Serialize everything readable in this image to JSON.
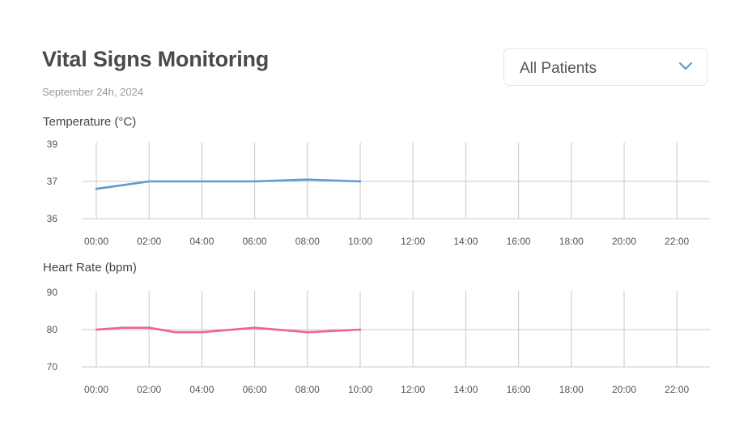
{
  "header": {
    "title": "Vital Signs Monitoring",
    "date": "September 24h, 2024"
  },
  "patient_select": {
    "selected": "All Patients",
    "icon": "chevron-down-icon"
  },
  "colors": {
    "temperature": "#5b9bd5",
    "heart_rate": "#f06292",
    "grid": "#c8c8c8"
  },
  "chart_data": [
    {
      "type": "line",
      "title": "Temperature (°C)",
      "x": [
        "00:00",
        "02:00",
        "04:00",
        "06:00",
        "08:00",
        "10:00",
        "12:00",
        "14:00",
        "16:00",
        "18:00",
        "20:00",
        "22:00"
      ],
      "y_ticks": [
        36,
        37,
        39
      ],
      "series": [
        {
          "x": [
            "00:00",
            "02:00",
            "04:00",
            "06:00",
            "08:00",
            "10:00"
          ],
          "values": [
            36.8,
            37.0,
            37.0,
            37.0,
            37.1,
            37.0
          ]
        }
      ],
      "grid": true
    },
    {
      "type": "line",
      "title": "Heart Rate (bpm)",
      "x": [
        "00:00",
        "02:00",
        "04:00",
        "06:00",
        "08:00",
        "10:00",
        "12:00",
        "14:00",
        "16:00",
        "18:00",
        "20:00",
        "22:00"
      ],
      "y_ticks": [
        70,
        80,
        90
      ],
      "series": [
        {
          "x": [
            "00:00",
            "01:00",
            "02:00",
            "03:00",
            "04:00",
            "06:00",
            "08:00",
            "10:00"
          ],
          "values": [
            80,
            80.5,
            80.5,
            79.3,
            79.3,
            80.5,
            79.3,
            80
          ]
        }
      ],
      "grid": true
    }
  ]
}
